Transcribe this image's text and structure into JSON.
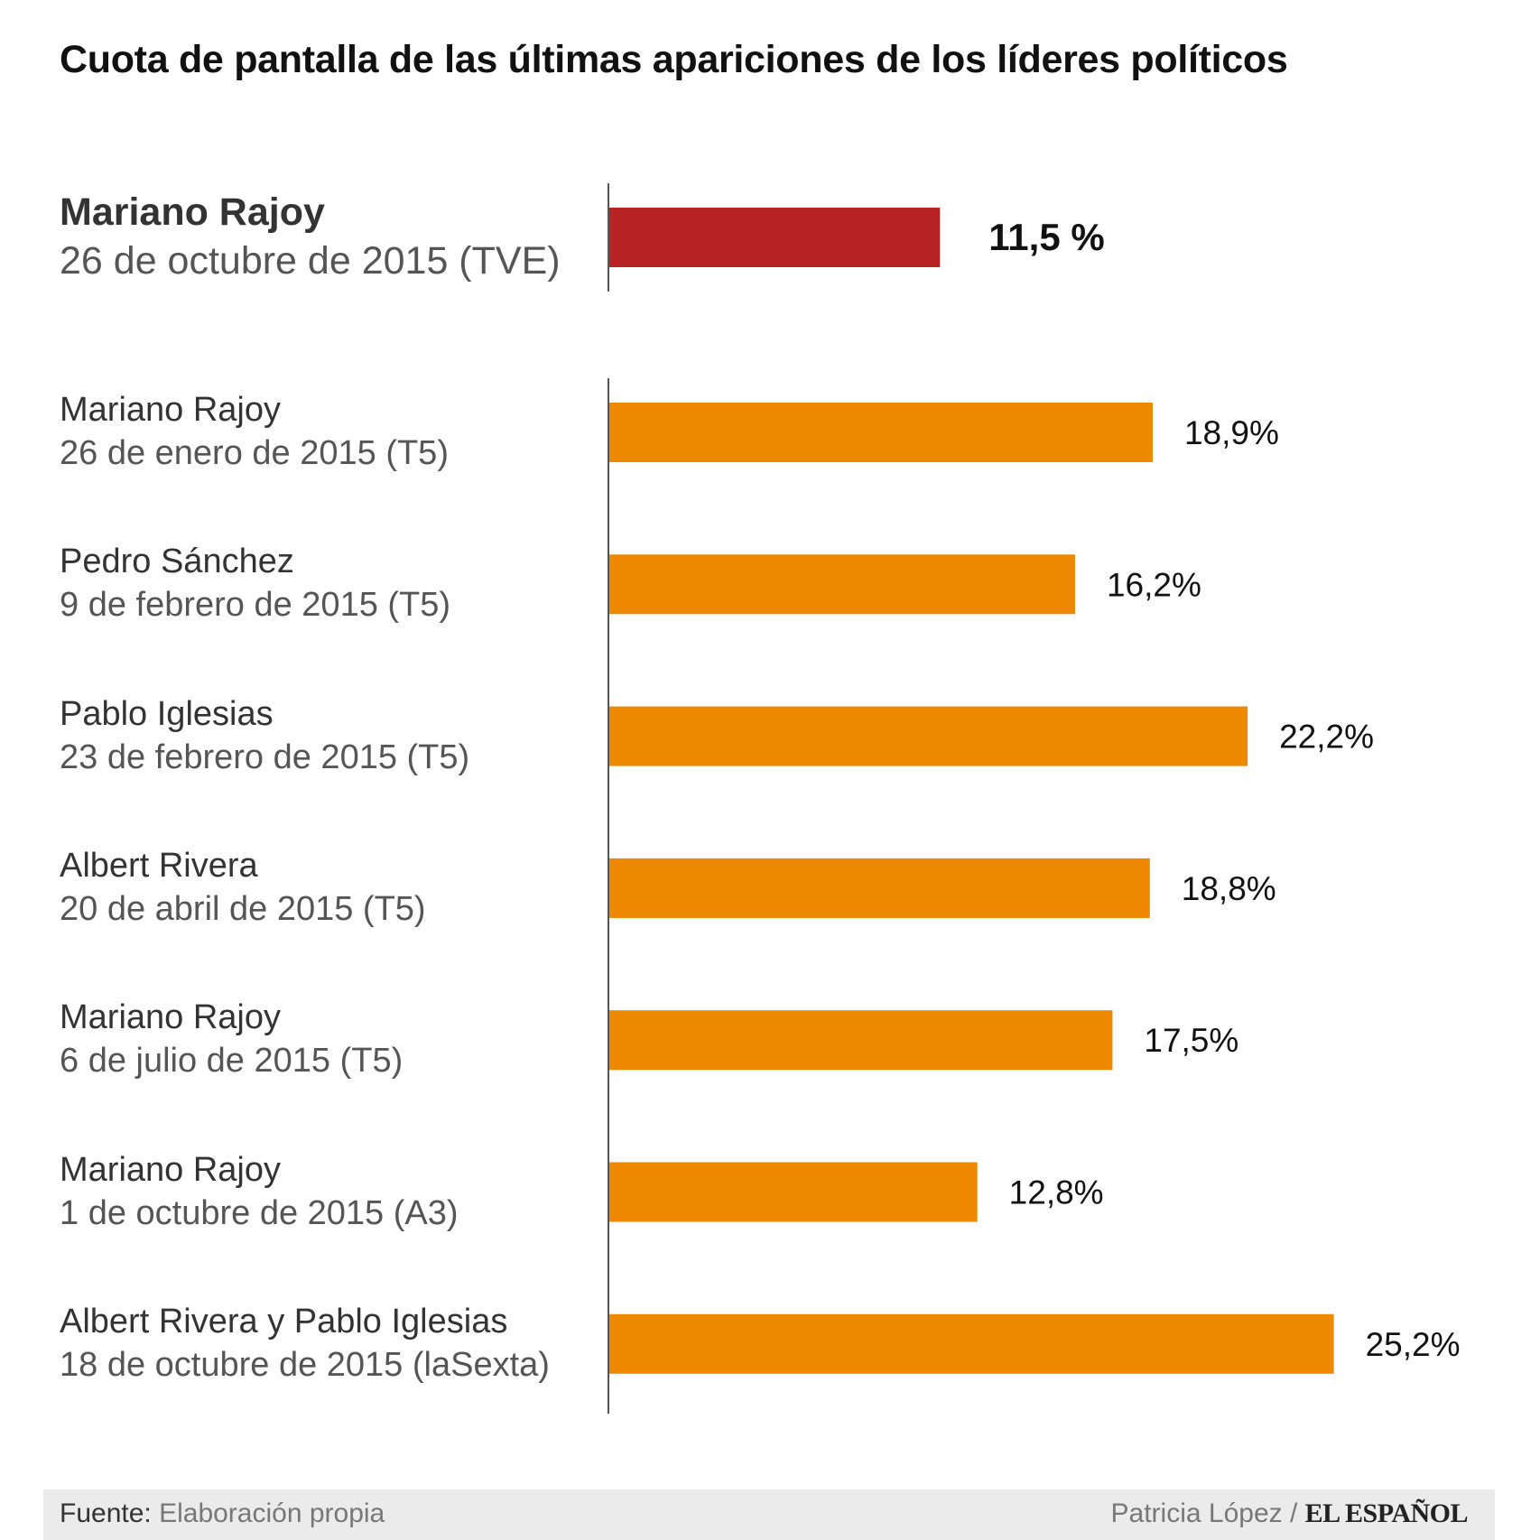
{
  "title": "Cuota de pantalla de las últimas apariciones de los líderes políticos",
  "colors": {
    "featured": "#b82323",
    "bars": "#ee8800",
    "axis": "#555555"
  },
  "chart_data": {
    "type": "bar",
    "orientation": "horizontal",
    "title": "Cuota de pantalla de las últimas apariciones de los líderes políticos",
    "featured": {
      "name": "Mariano Rajoy",
      "date": "26 de octubre de 2015 (TVE)",
      "value": 11.5,
      "label": "11,5 %"
    },
    "rows": [
      {
        "name": "Mariano Rajoy",
        "date": "26 de enero de 2015 (T5)",
        "value": 18.9,
        "label": "18,9%"
      },
      {
        "name": "Pedro Sánchez",
        "date": "9 de febrero de 2015 (T5)",
        "value": 16.2,
        "label": "16,2%"
      },
      {
        "name": "Pablo Iglesias",
        "date": "23 de febrero de 2015 (T5)",
        "value": 22.2,
        "label": "22,2%"
      },
      {
        "name": "Albert Rivera",
        "date": "20 de abril de 2015 (T5)",
        "value": 18.8,
        "label": "18,8%"
      },
      {
        "name": "Mariano Rajoy",
        "date": "6 de julio de 2015 (T5)",
        "value": 17.5,
        "label": "17,5%"
      },
      {
        "name": "Mariano Rajoy",
        "date": "1 de octubre de 2015 (A3)",
        "value": 12.8,
        "label": "12,8%"
      },
      {
        "name": "Albert Rivera y Pablo Iglesias",
        "date": "18 de octubre de 2015 (laSexta)",
        "value": 25.2,
        "label": "25,2%"
      }
    ],
    "xlim": [
      0,
      30
    ],
    "unit": "%"
  },
  "footer": {
    "source_key": "Fuente:",
    "source_value": "Elaboración propia",
    "author": "Patricia López /",
    "brand": "EL ESPAÑOL"
  }
}
